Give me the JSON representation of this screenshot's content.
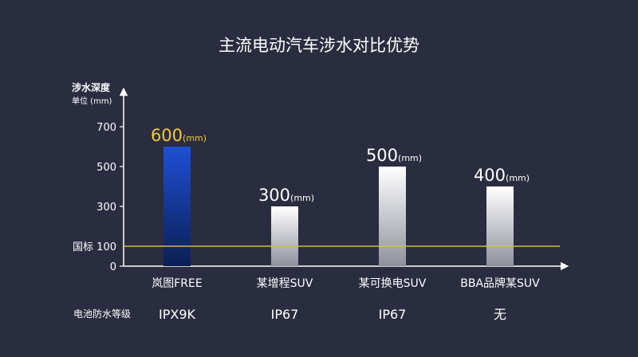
{
  "colors": {
    "background": "#2a2d3f",
    "highlight": "#f5c93a",
    "axis": "#ffffff",
    "reference_line": "#d8b84a"
  },
  "chart_data": {
    "type": "bar",
    "title": "主流电动汽车涉水对比优势",
    "ylabel": "涉水深度",
    "yunit_label": "单位 (mm)",
    "ylim": [
      0,
      800
    ],
    "yticks": [
      0,
      300,
      500,
      700
    ],
    "categories": [
      "岚图FREE",
      "某增程SUV",
      "某可换电SUV",
      "BBA品牌某SUV"
    ],
    "values": [
      600,
      300,
      500,
      400
    ],
    "value_unit": "(mm)",
    "highlight_index": 0,
    "reference_line": {
      "value": 100,
      "label": "国标 100"
    },
    "ratings_label": "电池防水等级",
    "ratings": [
      "IPX9K",
      "IP67",
      "IP67",
      "无"
    ]
  }
}
